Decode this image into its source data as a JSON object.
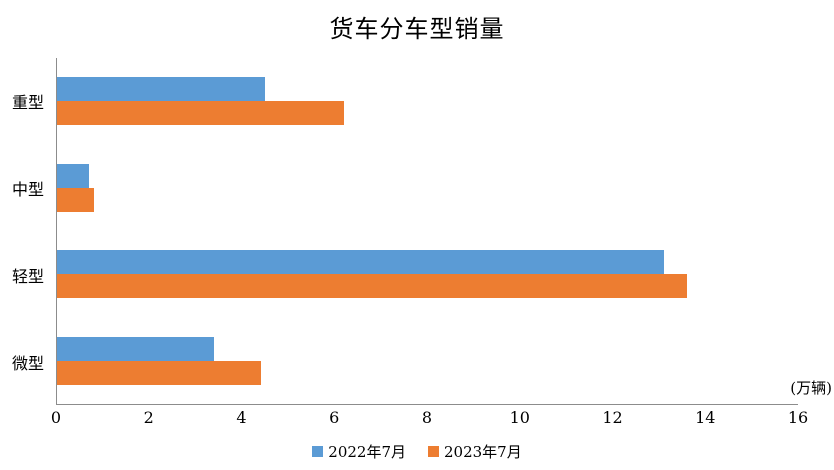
{
  "chart_data": {
    "type": "bar",
    "orientation": "horizontal",
    "title": "货车分车型销量",
    "unit_label": "(万辆)",
    "categories": [
      "重型",
      "中型",
      "轻型",
      "微型"
    ],
    "series": [
      {
        "name": "2022年7月",
        "color": "#5B9BD5",
        "values": [
          4.5,
          0.7,
          13.1,
          3.4
        ]
      },
      {
        "name": "2023年7月",
        "color": "#ED7D31",
        "values": [
          6.2,
          0.8,
          13.6,
          4.4
        ]
      }
    ],
    "xlim": [
      0,
      16
    ],
    "xticks": [
      0,
      2,
      4,
      6,
      8,
      10,
      12,
      14,
      16
    ],
    "grid": false,
    "legend_position": "bottom",
    "axis_color": "#8c8c8c",
    "background_color": "#ffffff"
  }
}
